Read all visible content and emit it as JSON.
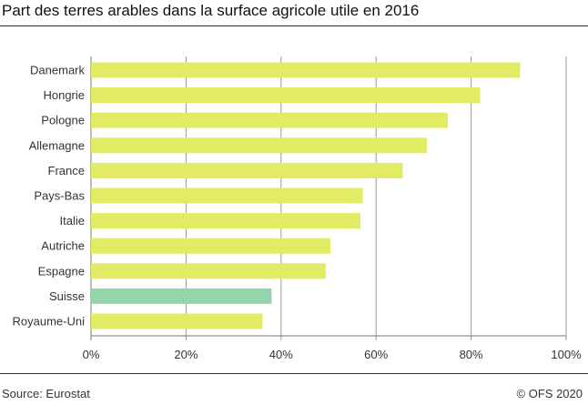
{
  "title": "Part des terres arables dans la surface agricole utile en 2016",
  "source": "Source: Eurostat",
  "copyright": "© OFS 2020",
  "chart_data": {
    "type": "bar",
    "orientation": "horizontal",
    "title": "Part des terres arables dans la surface agricole utile en 2016",
    "categories": [
      "Danemark",
      "Hongrie",
      "Pologne",
      "Allemagne",
      "France",
      "Pays-Bas",
      "Italie",
      "Autriche",
      "Espagne",
      "Suisse",
      "Royaume-Uni"
    ],
    "values": [
      90.3,
      81.9,
      75.1,
      70.7,
      65.6,
      57.2,
      56.7,
      50.4,
      49.4,
      38.0,
      36.1
    ],
    "xlim": [
      0,
      100
    ],
    "xticks": [
      "0%",
      "20%",
      "40%",
      "60%",
      "80%",
      "100%"
    ],
    "grid": true,
    "colors": {
      "default": "#e1eb63",
      "highlight": "#93d5aa",
      "highlight_category": "Suisse"
    }
  }
}
